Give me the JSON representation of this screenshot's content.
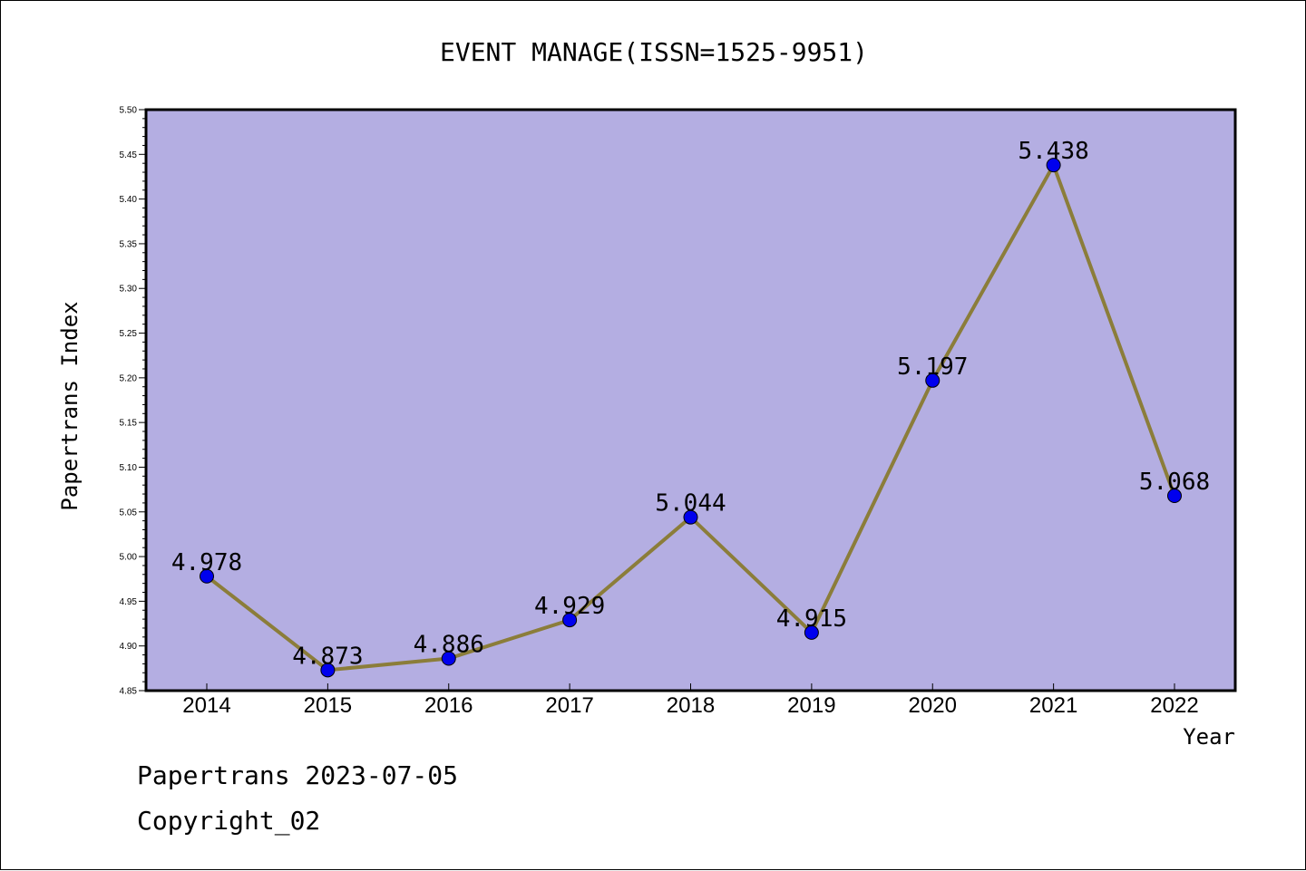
{
  "chart_data": {
    "type": "line",
    "title": "EVENT MANAGE(ISSN=1525-9951)",
    "xlabel": "Year",
    "ylabel": "Papertrans Index",
    "categories": [
      "2014",
      "2015",
      "2016",
      "2017",
      "2018",
      "2019",
      "2020",
      "2021",
      "2022"
    ],
    "series": [
      {
        "values": [
          4.978,
          4.873,
          4.886,
          4.929,
          5.044,
          4.915,
          5.197,
          5.438,
          5.068
        ]
      }
    ],
    "data_labels": [
      "4.978",
      "4.873",
      "4.886",
      "4.929",
      "5.044",
      "4.915",
      "5.197",
      "5.438",
      "5.068"
    ],
    "ylim": [
      4.85,
      5.5
    ],
    "y_ticks": [
      "4.85",
      "4.90",
      "4.95",
      "5.00",
      "5.05",
      "5.10",
      "5.15",
      "5.20",
      "5.25",
      "5.30",
      "5.35",
      "5.40",
      "5.45",
      "5.50"
    ],
    "grid": false,
    "legend": "none",
    "colors": {
      "plot_background": "#b4aee2",
      "line": "#8b7d3a",
      "marker": "#0000ee"
    }
  },
  "footer": {
    "line1": "Papertrans 2023-07-05",
    "line2": "Copyright_02"
  }
}
